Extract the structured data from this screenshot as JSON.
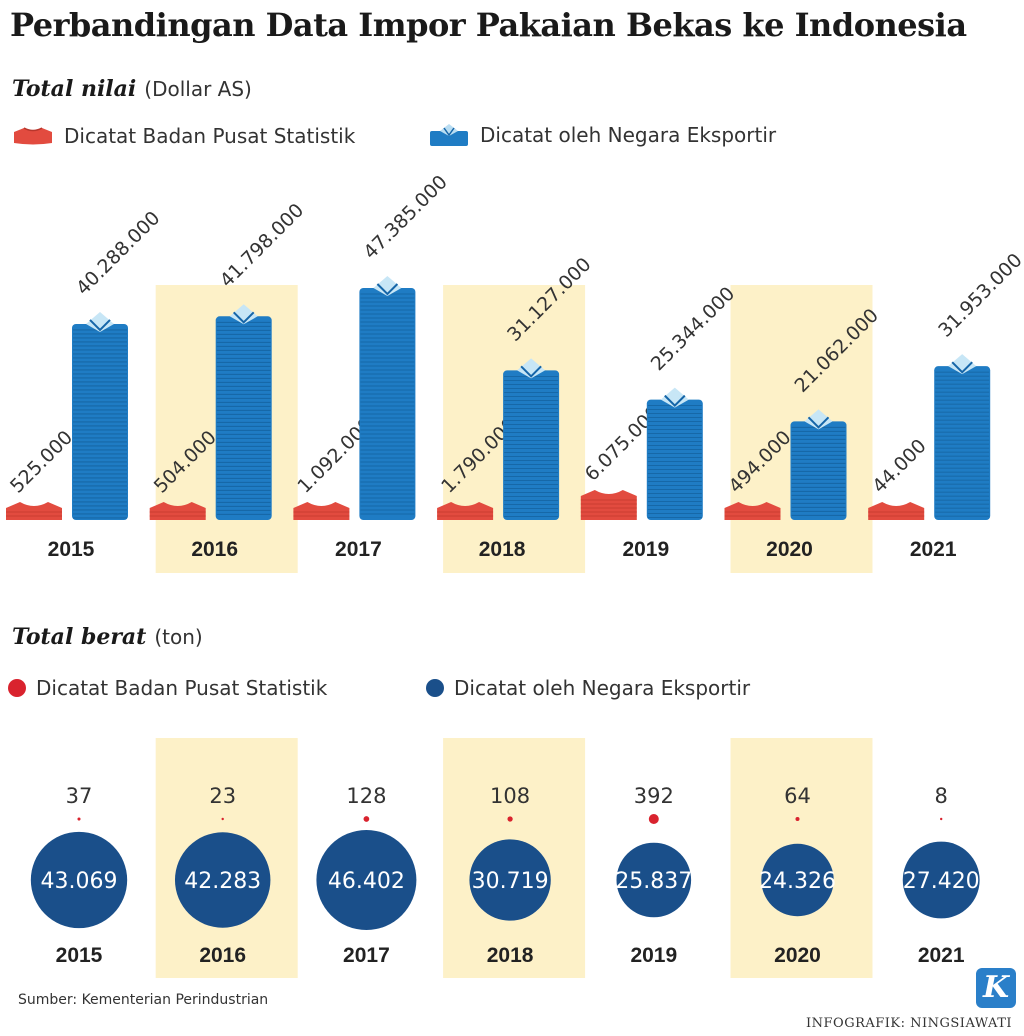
{
  "title": "Perbandingan Data Impor Pakaian Bekas ke Indonesia",
  "sections": {
    "value": {
      "label": "Total nilai",
      "unit": "(Dollar AS)"
    },
    "weight": {
      "label": "Total berat",
      "unit": "(ton)"
    }
  },
  "legend": {
    "bps": "Dicatat Badan Pusat Statistik",
    "exporter": "Dicatat oleh Negara Eksportir"
  },
  "colors": {
    "bps": "#e24b3f",
    "bps_dot": "#d9232e",
    "exporter": "#1f7cc4",
    "exporter_circle": "#1a4f8a",
    "highlight": "#fdf1c8"
  },
  "chart_data": [
    {
      "type": "bar",
      "title": "Total nilai",
      "ylabel": "Dollar AS",
      "categories": [
        "2015",
        "2016",
        "2017",
        "2018",
        "2019",
        "2020",
        "2021"
      ],
      "series": [
        {
          "name": "Dicatat Badan Pusat Statistik",
          "values": [
            525000,
            504000,
            1092000,
            1790000,
            6075000,
            494000,
            44000
          ],
          "labels": [
            "525.000",
            "504.000",
            "1.092.000",
            "1.790.000",
            "6.075.000",
            "494.000",
            "44.000"
          ]
        },
        {
          "name": "Dicatat oleh Negara Eksportir",
          "values": [
            40288000,
            41798000,
            47385000,
            31127000,
            25344000,
            21062000,
            31953000
          ],
          "labels": [
            "40.288.000",
            "41.798.000",
            "47.385.000",
            "31.127.000",
            "25.344.000",
            "21.062.000",
            "31.953.000"
          ]
        }
      ]
    },
    {
      "type": "scatter",
      "title": "Total berat",
      "ylabel": "ton",
      "categories": [
        "2015",
        "2016",
        "2017",
        "2018",
        "2019",
        "2020",
        "2021"
      ],
      "series": [
        {
          "name": "Dicatat Badan Pusat Statistik",
          "values": [
            37,
            23,
            128,
            108,
            392,
            64,
            8
          ],
          "labels": [
            "37",
            "23",
            "128",
            "108",
            "392",
            "64",
            "8"
          ]
        },
        {
          "name": "Dicatat oleh Negara Eksportir",
          "values": [
            43069,
            42283,
            46402,
            30719,
            25837,
            24326,
            27420
          ],
          "labels": [
            "43.069",
            "42.283",
            "46.402",
            "30.719",
            "25.837",
            "24.326",
            "27.420"
          ]
        }
      ]
    }
  ],
  "highlighted_years": [
    "2016",
    "2018",
    "2020"
  ],
  "source": "Sumber: Kementerian Perindustrian",
  "credit": "INFOGRAFIK: NINGSIAWATI",
  "logo": "K"
}
